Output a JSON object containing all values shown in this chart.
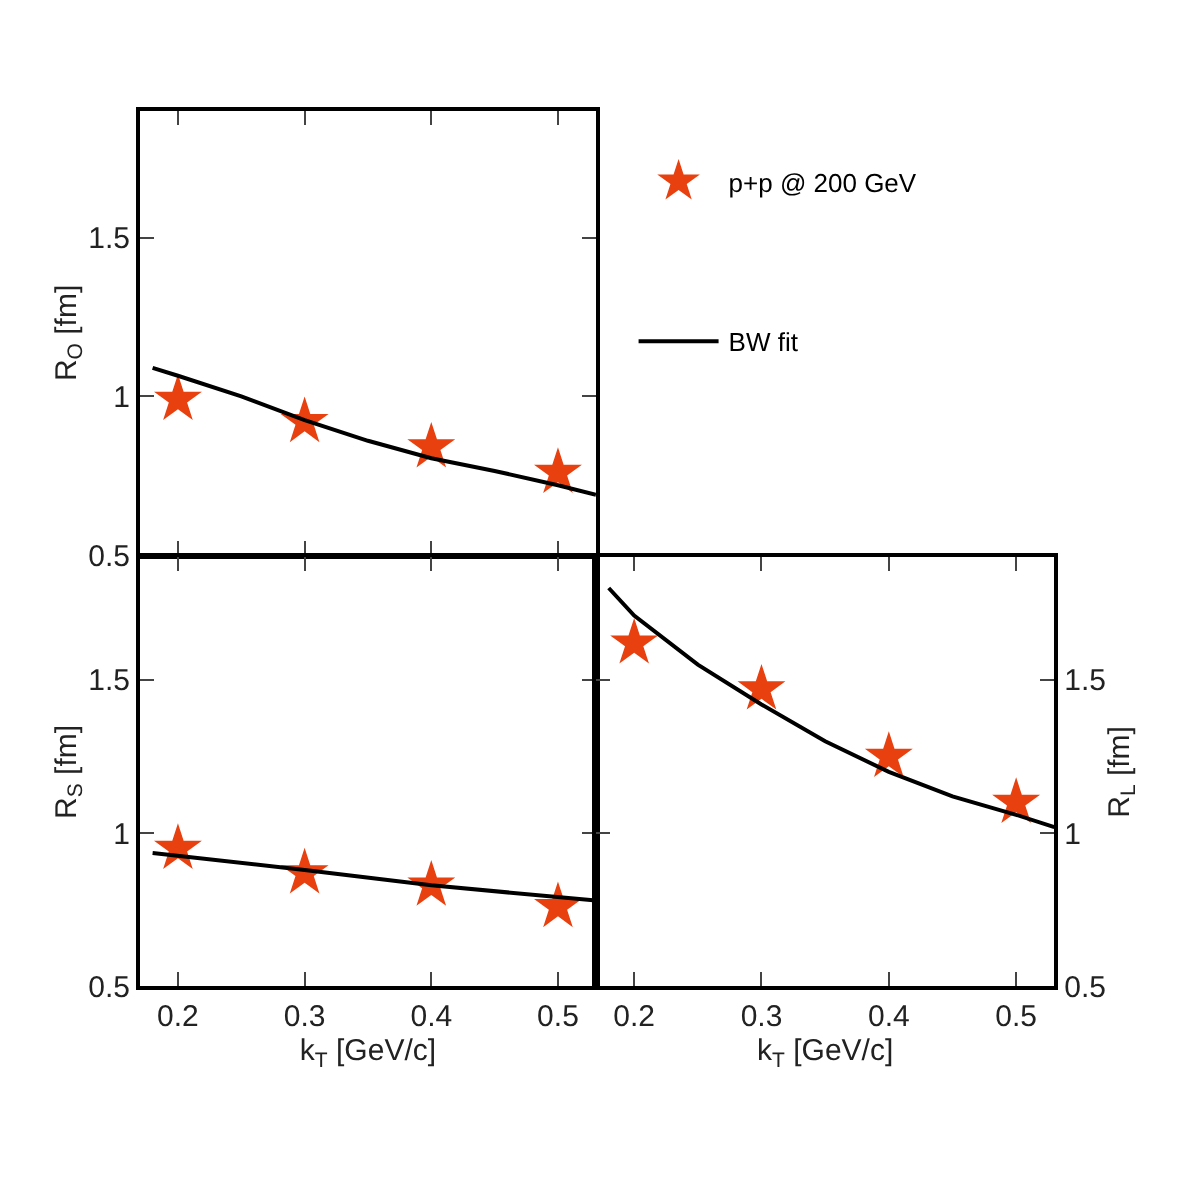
{
  "chart_data": [
    {
      "type": "scatter",
      "ylabel": "R$_{O}$ [fm]",
      "xlim": [
        0.17,
        0.53
      ],
      "ylim": [
        0.5,
        1.9
      ],
      "xticks": [
        {
          "value": 0.2,
          "label": null
        },
        {
          "value": 0.3,
          "label": null
        },
        {
          "value": 0.4,
          "label": null
        },
        {
          "value": 0.5,
          "label": null
        }
      ],
      "yticks": [
        0.5,
        1,
        1.5
      ],
      "tick_labels": "y",
      "legend": "right",
      "marker": "star",
      "series": [
        {
          "name": "p+p @ 200 GeV",
          "color": "#e8400f",
          "x": [
            0.2,
            0.3,
            0.4,
            0.5
          ],
          "values": [
            0.99,
            0.92,
            0.84,
            0.76
          ]
        },
        {
          "name": "BW fit",
          "type": "line",
          "marker": "none",
          "color": "#000000",
          "x": [
            0.18,
            0.2,
            0.25,
            0.3,
            0.35,
            0.4,
            0.45,
            0.5,
            0.53
          ],
          "values": [
            1.09,
            1.065,
            1.0,
            0.925,
            0.86,
            0.805,
            0.765,
            0.72,
            0.69
          ]
        }
      ]
    },
    {
      "type": "scatter",
      "xlabel": "k$_{T}$ [GeV/c]",
      "ylabel": "R$_{S}$ [fm]",
      "xlim": [
        0.17,
        0.53
      ],
      "ylim": [
        0.5,
        1.9
      ],
      "xticks": [
        0.2,
        0.3,
        0.4,
        0.5
      ],
      "yticks": [
        0.5,
        1,
        1.5
      ],
      "marker": "star",
      "series": [
        {
          "color": "#e8400f",
          "x": [
            0.2,
            0.3,
            0.4,
            0.5
          ],
          "values": [
            0.95,
            0.87,
            0.83,
            0.76
          ]
        },
        {
          "type": "line",
          "marker": "none",
          "color": "#000000",
          "x": [
            0.18,
            0.3,
            0.4,
            0.53
          ],
          "values": [
            0.935,
            0.88,
            0.83,
            0.78
          ]
        }
      ]
    },
    {
      "type": "scatter",
      "xlabel": "k$_{T}$ [GeV/c]",
      "y2label": "R$_{L}$ [fm]",
      "xlim": [
        0.17,
        0.53
      ],
      "y2lim": [
        0.5,
        1.9
      ],
      "xticks": [
        0.2,
        0.3,
        0.4,
        0.5
      ],
      "y2ticks": [
        0.5,
        1,
        1.5
      ],
      "marker": "star",
      "series": [
        {
          "color": "#e8400f",
          "axis": "y2",
          "x": [
            0.2,
            0.3,
            0.4,
            0.5
          ],
          "values": [
            1.62,
            1.47,
            1.25,
            1.1
          ]
        },
        {
          "type": "line",
          "marker": "none",
          "axis": "y2",
          "color": "#000000",
          "x": [
            0.18,
            0.2,
            0.25,
            0.3,
            0.35,
            0.4,
            0.45,
            0.5,
            0.53
          ],
          "values": [
            1.8,
            1.71,
            1.55,
            1.42,
            1.3,
            1.2,
            1.12,
            1.06,
            1.02
          ]
        }
      ]
    }
  ]
}
